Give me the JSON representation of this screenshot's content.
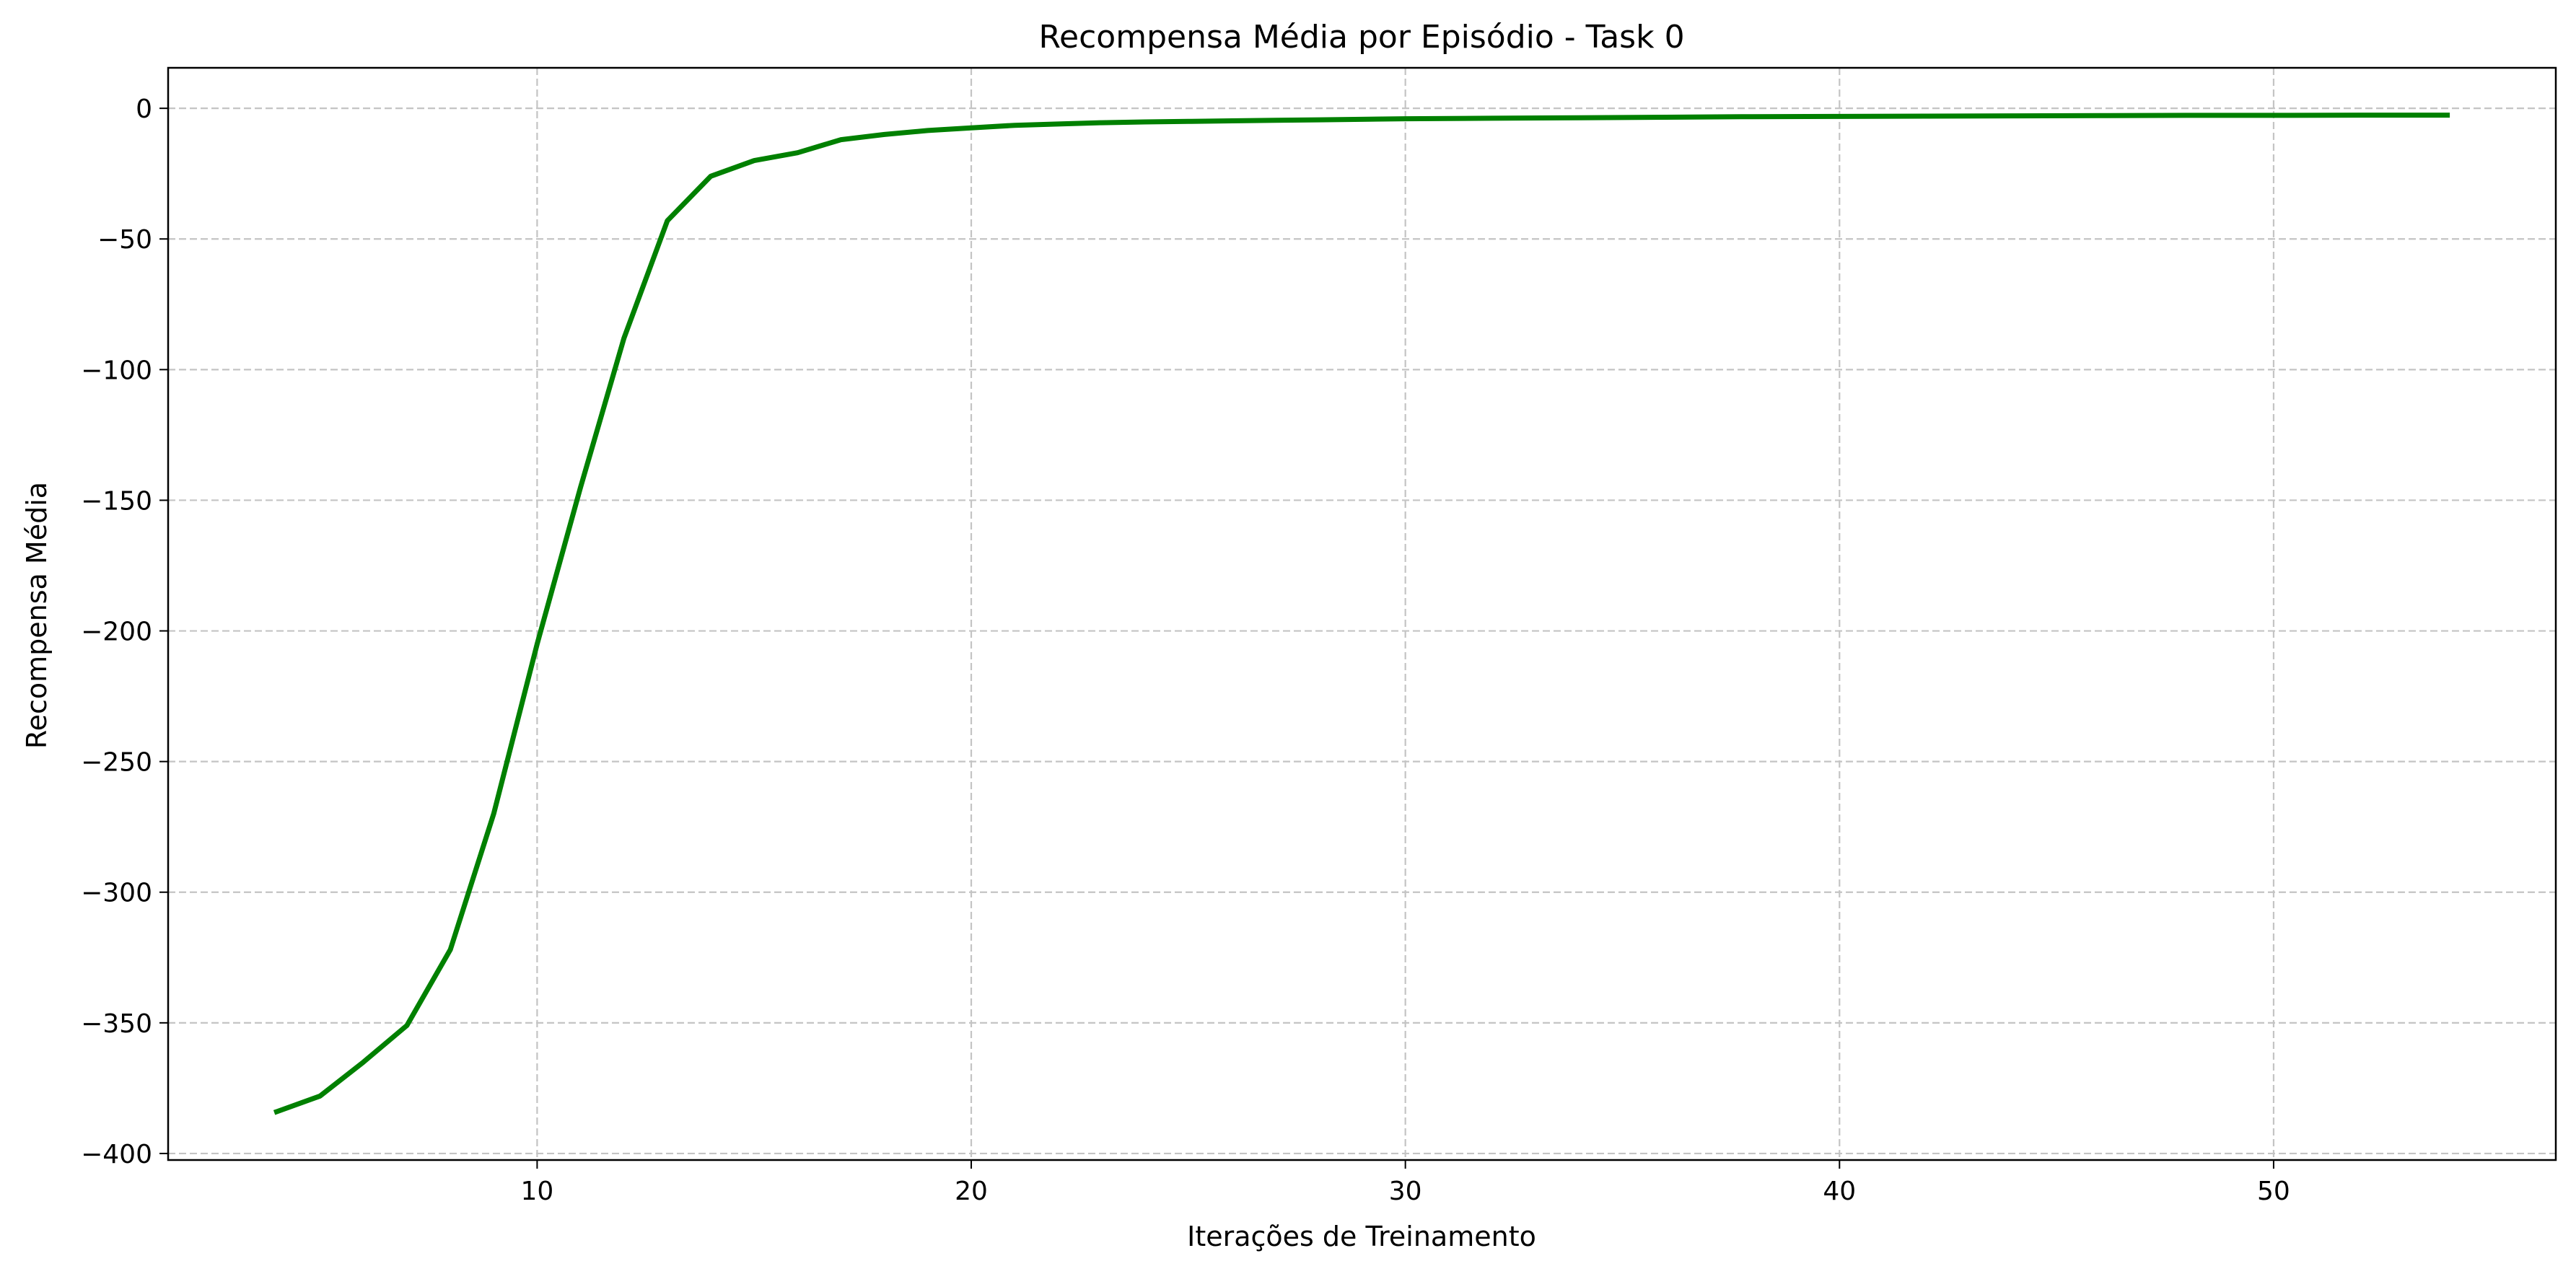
{
  "chart_data": {
    "type": "line",
    "title": "Recompensa Média por Episódio - Task 0",
    "xlabel": "Iterações de Treinamento",
    "ylabel": "Recompensa Média",
    "xlim": [
      1.5,
      56.5
    ],
    "ylim": [
      -402.5,
      15.5
    ],
    "xticks": [
      10,
      20,
      30,
      40,
      50
    ],
    "yticks": [
      0,
      -50,
      -100,
      -150,
      -200,
      -250,
      -300,
      -350,
      -400
    ],
    "ytick_labels": [
      "0",
      "−50",
      "−100",
      "−150",
      "−200",
      "−250",
      "−300",
      "−350",
      "−400"
    ],
    "grid": true,
    "series": [
      {
        "color": "#008000",
        "x": [
          4,
          5,
          6,
          7,
          8,
          9,
          10,
          11,
          12,
          13,
          14,
          15,
          16,
          17,
          18,
          19,
          20,
          21,
          22,
          23,
          24,
          25,
          26,
          27,
          28,
          29,
          30,
          32,
          34,
          36,
          38,
          40,
          42,
          44,
          46,
          48,
          50,
          52,
          54
        ],
        "y": [
          -384,
          -378,
          -365,
          -351,
          -322,
          -270,
          -205,
          -145,
          -88,
          -43,
          -26,
          -20,
          -17,
          -12,
          -10,
          -8.5,
          -7.5,
          -6.5,
          -6,
          -5.5,
          -5.2,
          -5,
          -4.8,
          -4.6,
          -4.4,
          -4.2,
          -4,
          -3.8,
          -3.6,
          -3.4,
          -3.2,
          -3.1,
          -3,
          -2.9,
          -2.8,
          -2.7,
          -2.7,
          -2.6,
          -2.6
        ]
      }
    ]
  }
}
